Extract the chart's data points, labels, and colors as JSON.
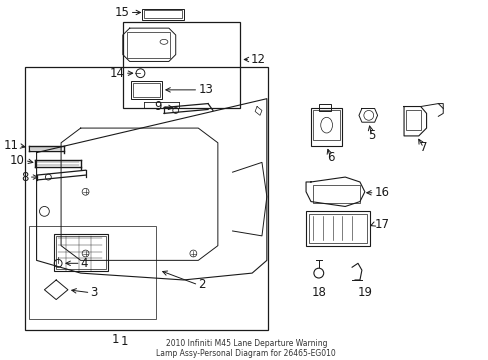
{
  "bg_color": "#ffffff",
  "line_color": "#1a1a1a",
  "fig_width": 4.89,
  "fig_height": 3.6,
  "dpi": 100,
  "font_size": 8.5,
  "title": "2010 Infiniti M45 Lane Departure Warning\nLamp Assy-Personal Diagram for 26465-EG010"
}
